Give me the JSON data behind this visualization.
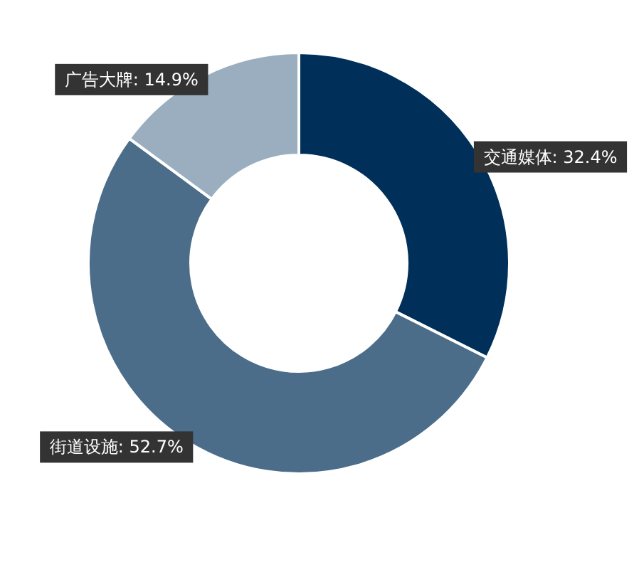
{
  "chart_data": {
    "type": "donut",
    "categories": [
      "交通媒体",
      "街道设施",
      "广告大牌"
    ],
    "values": [
      32.4,
      52.7,
      14.9
    ],
    "colors": [
      "#00305a",
      "#4b6d8a",
      "#9aaebf"
    ],
    "value_labels": [
      "32.4%",
      "52.7%",
      "14.9%"
    ]
  }
}
